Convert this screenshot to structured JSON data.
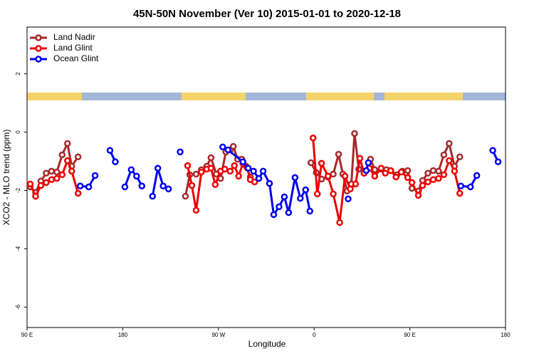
{
  "chart_data": {
    "type": "line",
    "title": "45N-50N November (Ver 10)   2015-01-01 to 2020-12-18",
    "x_label": "Longitude",
    "y_label": "XCO2 - MLO trend (ppm)",
    "xlim": [
      90,
      540
    ],
    "ylim": [
      -6.7,
      3.6
    ],
    "xticks": [
      {
        "value": 90,
        "label": "90 E"
      },
      180,
      {
        "value": 270,
        "label": "90 W"
      },
      {
        "value": 360,
        "label": "0"
      },
      {
        "value": 450,
        "label": "90 E"
      },
      {
        "value": 540,
        "label": "180"
      }
    ],
    "yticks": [
      -6,
      -4,
      -2,
      0,
      2
    ],
    "legend": "top-left",
    "series": [
      {
        "name": "Land Nadir",
        "color": "#a52a2a",
        "x": [
          93,
          98,
          103,
          108,
          113,
          118,
          123,
          128,
          132,
          138,
          null,
          239,
          243,
          249,
          254,
          259,
          263,
          268,
          272,
          277,
          281,
          284,
          288,
          292,
          296,
          300,
          null,
          357,
          362,
          367,
          373,
          378,
          383,
          387,
          391,
          395,
          398,
          402,
          407,
          413,
          417,
          423,
          428,
          432,
          438,
          443,
          448,
          452,
          458,
          462,
          467,
          472,
          477,
          482,
          487,
          492,
          497
        ],
        "values": [
          -1.88,
          -2.07,
          -1.68,
          -1.41,
          -1.34,
          -1.37,
          -0.78,
          -0.39,
          -1.17,
          -0.85,
          null,
          -2.2,
          -1.46,
          -1.44,
          -1.29,
          -1.17,
          -0.88,
          -1.44,
          -1.59,
          -0.68,
          -0.61,
          -0.49,
          -0.93,
          -0.93,
          -1.17,
          -1.54,
          null,
          -1.05,
          -1.39,
          -1.61,
          -1.54,
          -1.44,
          -0.76,
          -1.44,
          -2.02,
          -1.78,
          -0.05,
          -1.27,
          -1.41,
          -0.93,
          -1.29,
          -1.27,
          -1.29,
          -1.32,
          -1.46,
          -1.34,
          -1.32,
          -1.93,
          -2.02,
          -1.66,
          -1.41,
          -1.32,
          -1.34,
          -0.78,
          -0.39,
          -1.17,
          -0.85
        ]
      },
      {
        "name": "Land Glint",
        "color": "#ee0000",
        "x": [
          93,
          98,
          103,
          108,
          113,
          118,
          123,
          128,
          132,
          138,
          null,
          241,
          245,
          249,
          254,
          259,
          263,
          267,
          272,
          276,
          281,
          285,
          289,
          293,
          297,
          300,
          304,
          null,
          359,
          363,
          367,
          373,
          378,
          384,
          389,
          394,
          399,
          403,
          407,
          412,
          417,
          423,
          427,
          432,
          437,
          442,
          448,
          452,
          458,
          462,
          467,
          472,
          477,
          482,
          487,
          492,
          497
        ],
        "values": [
          -1.78,
          -2.2,
          -1.83,
          -1.73,
          -1.63,
          -1.59,
          -1.46,
          -0.98,
          -1.34,
          -2.1,
          null,
          -1.15,
          -1.83,
          -2.68,
          -1.37,
          -1.27,
          -1.24,
          -1.8,
          -1.34,
          -1.27,
          -1.34,
          -1.15,
          -1.51,
          -1.07,
          -1.22,
          -1.63,
          -1.71,
          null,
          -0.2,
          -2.12,
          -1.07,
          -1.51,
          -2.12,
          -3.1,
          -1.51,
          -1.95,
          -1.78,
          -0.9,
          -1.41,
          -1.24,
          -1.51,
          -1.24,
          -1.41,
          -1.32,
          -1.54,
          -1.37,
          -1.56,
          -1.73,
          -2.17,
          -1.83,
          -1.71,
          -1.63,
          -1.59,
          -1.46,
          -0.98,
          -1.34,
          -2.1
        ]
      },
      {
        "name": "Ocean Glint",
        "color": "#0000ee",
        "x": [
          140,
          148,
          154,
          null,
          168,
          173,
          null,
          182,
          188,
          193,
          198,
          null,
          208,
          213,
          218,
          223,
          null,
          234,
          null,
          274,
          279,
          293,
          298,
          303,
          308,
          312,
          318,
          322,
          327,
          332,
          336,
          342,
          347,
          352,
          356,
          null,
          392,
          null,
          409,
          411,
          null,
          498,
          507,
          513,
          null,
          528,
          533
        ],
        "values": [
          -1.85,
          -1.88,
          -1.49,
          null,
          -0.63,
          -1.02,
          null,
          -1.88,
          -1.29,
          -1.51,
          -1.85,
          null,
          -2.2,
          -1.24,
          -1.85,
          -1.95,
          null,
          -0.68,
          null,
          -0.51,
          -0.61,
          -1.02,
          -1.24,
          -1.34,
          -1.59,
          -1.34,
          -1.76,
          -2.83,
          -2.56,
          -2.22,
          -2.76,
          -1.56,
          -2.27,
          -1.98,
          -2.71,
          null,
          -2.29,
          null,
          -1.32,
          -1.05,
          null,
          -1.85,
          -1.88,
          -1.49,
          null,
          -0.63,
          -1.02
        ]
      }
    ]
  }
}
